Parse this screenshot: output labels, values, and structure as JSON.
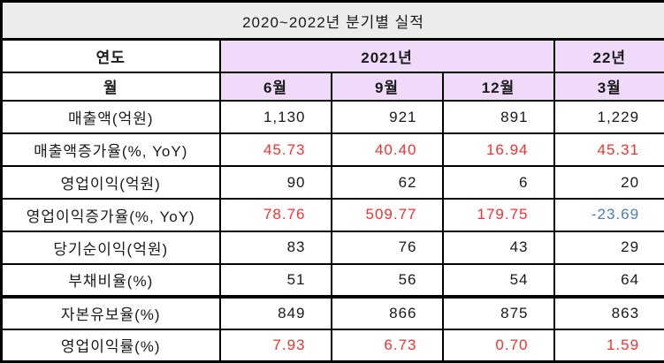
{
  "title": "2020~2022년  분기별  실적",
  "colors": {
    "black": "#1a1a1a",
    "red": "#f83030",
    "blue": "#4a7ebf",
    "lavender": "#efdafa",
    "title_bg": "#ececec",
    "border": "#000000"
  },
  "header": {
    "year_label": "연도",
    "month_label": "월",
    "year_group_2021": "2021년",
    "year_group_22": "22년",
    "months": [
      "6월",
      "9월",
      "12월",
      "3월"
    ]
  },
  "rows": [
    {
      "label": "매출액(억원)",
      "values": [
        "1,130",
        "921",
        "891",
        "1,229"
      ],
      "value_colors": [
        "black",
        "black",
        "black",
        "black"
      ]
    },
    {
      "label": "매출액증가율(%, YoY)",
      "values": [
        "45.73",
        "40.40",
        "16.94",
        "45.31"
      ],
      "value_colors": [
        "red",
        "red",
        "red",
        "red"
      ]
    },
    {
      "label": "영업이익(억원)",
      "values": [
        "90",
        "62",
        "6",
        "20"
      ],
      "value_colors": [
        "black",
        "black",
        "black",
        "black"
      ]
    },
    {
      "label": "영업이익증가율(%, YoY)",
      "values": [
        "78.76",
        "509.77",
        "179.75",
        "-23.69"
      ],
      "value_colors": [
        "red",
        "red",
        "red",
        "blue"
      ]
    },
    {
      "label": "당기순이익(억원)",
      "values": [
        "83",
        "76",
        "43",
        "29"
      ],
      "value_colors": [
        "black",
        "black",
        "black",
        "black"
      ]
    },
    {
      "label": "부채비율(%)",
      "values": [
        "51",
        "56",
        "54",
        "64"
      ],
      "value_colors": [
        "black",
        "black",
        "black",
        "black"
      ]
    },
    {
      "label": "자본유보율(%)",
      "values": [
        "849",
        "866",
        "875",
        "863"
      ],
      "value_colors": [
        "black",
        "black",
        "black",
        "black"
      ]
    },
    {
      "label": "영업이익률(%)",
      "values": [
        "7.93",
        "6.73",
        "0.70",
        "1.59"
      ],
      "value_colors": [
        "red",
        "red",
        "red",
        "red"
      ]
    }
  ],
  "chart_data": {
    "type": "table",
    "title": "2020~2022년 분기별 실적",
    "column_groups": [
      {
        "year": "2021년",
        "months": [
          "6월",
          "9월",
          "12월"
        ]
      },
      {
        "year": "22년",
        "months": [
          "3월"
        ]
      }
    ],
    "columns": [
      "2021년 6월",
      "2021년 9월",
      "2021년 12월",
      "22년 3월"
    ],
    "series": [
      {
        "name": "매출액(억원)",
        "values": [
          1130,
          921,
          891,
          1229
        ]
      },
      {
        "name": "매출액증가율(%, YoY)",
        "values": [
          45.73,
          40.4,
          16.94,
          45.31
        ]
      },
      {
        "name": "영업이익(억원)",
        "values": [
          90,
          62,
          6,
          20
        ]
      },
      {
        "name": "영업이익증가율(%, YoY)",
        "values": [
          78.76,
          509.77,
          179.75,
          -23.69
        ]
      },
      {
        "name": "당기순이익(억원)",
        "values": [
          83,
          76,
          43,
          29
        ]
      },
      {
        "name": "부채비율(%)",
        "values": [
          51,
          56,
          54,
          64
        ]
      },
      {
        "name": "자본유보율(%)",
        "values": [
          849,
          866,
          875,
          863
        ]
      },
      {
        "name": "영업이익률(%)",
        "values": [
          7.93,
          6.73,
          0.7,
          1.59
        ]
      }
    ]
  }
}
